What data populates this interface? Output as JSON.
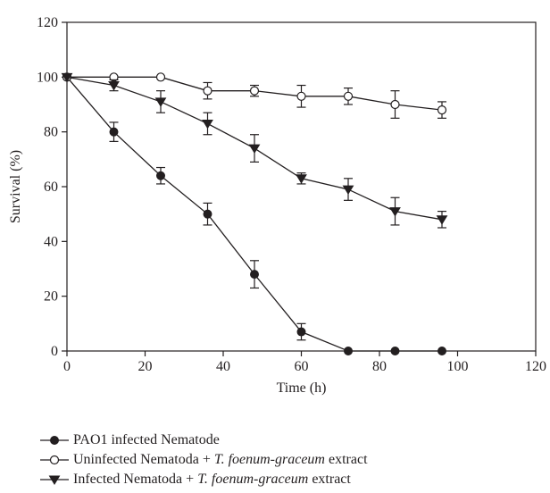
{
  "chart_data": {
    "type": "line",
    "title": "",
    "xlabel": "Time (h)",
    "ylabel": "Survival (%)",
    "xlim": [
      0,
      120
    ],
    "ylim": [
      0,
      120
    ],
    "xticks": [
      0,
      20,
      40,
      60,
      80,
      100,
      120
    ],
    "yticks": [
      0,
      20,
      40,
      60,
      80,
      100,
      120
    ],
    "grid": false,
    "legend_position": "bottom",
    "series": [
      {
        "name": "PAO1 infected Nematode",
        "name_parts": [
          "PAO1 infected Nematode"
        ],
        "marker": "filled-circle",
        "color": "#231f20",
        "x": [
          0,
          12,
          24,
          36,
          48,
          60,
          72,
          84,
          96
        ],
        "y": [
          100,
          80,
          64,
          50,
          28,
          7,
          0,
          0,
          0
        ],
        "error": [
          0,
          3.5,
          3,
          4,
          5,
          3,
          0,
          0,
          0
        ]
      },
      {
        "name": "Uninfected Nematoda + T. foenum-graceum extract",
        "name_parts": [
          "Uninfected Nematoda + ",
          "T. foenum-graceum",
          " extract"
        ],
        "marker": "open-circle",
        "color": "#231f20",
        "x": [
          0,
          12,
          24,
          36,
          48,
          60,
          72,
          84,
          96
        ],
        "y": [
          100,
          100,
          100,
          95,
          95,
          93,
          93,
          90,
          88
        ],
        "error": [
          0,
          0,
          0,
          3,
          2,
          4,
          3,
          5,
          3
        ]
      },
      {
        "name": "Infected Nematoda + T. foenum-graceum extract",
        "name_parts": [
          "Infected Nematoda + ",
          "T. foenum-graceum",
          " extract"
        ],
        "marker": "filled-triangle-down",
        "color": "#231f20",
        "x": [
          0,
          12,
          24,
          36,
          48,
          60,
          72,
          84,
          96
        ],
        "y": [
          100,
          97,
          91,
          83,
          74,
          63,
          59,
          51,
          48
        ],
        "error": [
          0,
          2,
          4,
          4,
          5,
          2,
          4,
          5,
          3
        ]
      }
    ]
  }
}
